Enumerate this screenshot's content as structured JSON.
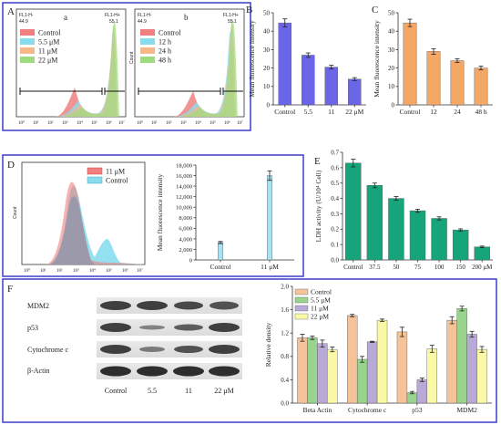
{
  "panels": {
    "A": {
      "letter": "A",
      "sub_a": "a",
      "sub_b": "b",
      "gate_left_label": "FL1-H-",
      "gate_left_value": "44.9",
      "gate_right_label": "FL1-H+",
      "gate_right_value": "55.1",
      "legend_a": [
        "Control",
        "5.5 μM",
        "11 μM",
        "22 μM"
      ],
      "legend_b": [
        "Control",
        "12 h",
        "24 h",
        "48 h"
      ],
      "ylabel_b": "Count",
      "xticks": [
        "10⁰",
        "10¹",
        "10²",
        "10³",
        "10⁴",
        "10⁵",
        "10⁶",
        "10⁷"
      ]
    },
    "D": {
      "letter": "D",
      "legend": [
        "11 μM",
        "Control"
      ],
      "ylabel_hist": "Count",
      "xticks": [
        "10⁰",
        "10¹",
        "10²",
        "10³",
        "10⁴",
        "10⁵",
        "10⁶",
        "10⁷"
      ]
    },
    "F": {
      "letter": "F",
      "blot_rows": [
        "MDM2",
        "p53",
        "Cytochrome c",
        "β-Actin"
      ],
      "lanes": [
        "Control",
        "5.5",
        "11",
        "22 μM"
      ]
    }
  },
  "colors": {
    "B_bar": "#6b66e8",
    "C_bar": "#f5a766",
    "D_bar": "#a8e2f5",
    "E_bar": "#16a57a",
    "F_series": [
      "#f5c39a",
      "#98d48e",
      "#b9a9d6",
      "#fafaa6"
    ],
    "frame": "#3d3dc9",
    "hist_control": "#f08080",
    "hist_55": "#87ddee",
    "hist_11": "#f5b88a",
    "hist_22": "#9fdb7e"
  },
  "chart_data": [
    {
      "id": "B",
      "type": "bar",
      "letter": "B",
      "categories": [
        "Control",
        "5.5",
        "11",
        "22 μM"
      ],
      "values": [
        44.5,
        27,
        20.5,
        14
      ],
      "errors": [
        2.2,
        1.2,
        1.0,
        0.8
      ],
      "ylabel": "Mean fluorescence intensity",
      "ylim": [
        0,
        50
      ],
      "yticks": [
        0,
        10,
        20,
        30,
        40,
        50
      ]
    },
    {
      "id": "C",
      "type": "bar",
      "letter": "C",
      "categories": [
        "Control",
        "12",
        "24",
        "48 h"
      ],
      "values": [
        44.5,
        29,
        24,
        20
      ],
      "errors": [
        2.0,
        1.5,
        1.0,
        1.0
      ],
      "ylabel": "Mean fluorescence intensity",
      "ylim": [
        0,
        50
      ],
      "yticks": [
        0,
        10,
        20,
        30,
        40,
        50
      ]
    },
    {
      "id": "D",
      "type": "bar",
      "categories": [
        "Control",
        "11 μM"
      ],
      "values": [
        3300,
        16000
      ],
      "errors": [
        200,
        900
      ],
      "ylabel": "Mean fluorescence intensity",
      "ylim": [
        0,
        18000
      ],
      "yticks": [
        0,
        2000,
        4000,
        6000,
        8000,
        10000,
        12000,
        14000,
        16000,
        18000
      ],
      "yticklabels": [
        "0",
        "2,000",
        "4,000",
        "6,000",
        "8,000",
        "10,000",
        "12,000",
        "14,000",
        "16,000",
        "18,000"
      ]
    },
    {
      "id": "E",
      "type": "bar",
      "letter": "E",
      "categories": [
        "Control",
        "37.5",
        "50",
        "75",
        "100",
        "150",
        "200 μM"
      ],
      "values": [
        0.63,
        0.485,
        0.4,
        0.32,
        0.27,
        0.195,
        0.085
      ],
      "errors": [
        0.025,
        0.015,
        0.012,
        0.01,
        0.01,
        0.007,
        0.005
      ],
      "ylabel": "LDH activity (U/10⁴ Cell)",
      "ylim": [
        0,
        0.7
      ],
      "yticks": [
        0,
        0.1,
        0.2,
        0.3,
        0.4,
        0.5,
        0.6,
        0.7
      ],
      "yticklabels": [
        "0.0",
        "0.1",
        "0.2",
        "0.3",
        "0.4",
        "0.5",
        "0.6",
        "0.7"
      ]
    },
    {
      "id": "F",
      "type": "bar",
      "categories": [
        "Beta Actin",
        "Cytochrome c",
        "p53",
        "MDM2"
      ],
      "series": [
        {
          "name": "Control",
          "values": [
            1.12,
            1.5,
            1.22,
            1.42
          ],
          "errors": [
            0.06,
            0.02,
            0.08,
            0.06
          ]
        },
        {
          "name": "5.5 μM",
          "values": [
            1.12,
            0.75,
            0.18,
            1.62
          ],
          "errors": [
            0.03,
            0.05,
            0.02,
            0.04
          ]
        },
        {
          "name": "11 μM",
          "values": [
            1.02,
            1.05,
            0.4,
            1.18
          ],
          "errors": [
            0.06,
            0.01,
            0.03,
            0.05
          ]
        },
        {
          "name": "22 μM",
          "values": [
            0.92,
            1.42,
            0.93,
            0.92
          ],
          "errors": [
            0.04,
            0.02,
            0.06,
            0.05
          ]
        }
      ],
      "ylabel": "Relative density",
      "ylim": [
        0,
        2.0
      ],
      "yticks": [
        0,
        0.4,
        0.8,
        1.2,
        1.6,
        2.0
      ],
      "yticklabels": [
        "0.0",
        "0.4",
        "0.8",
        "1.2",
        "1.6",
        "2.0"
      ],
      "legend_position": "top-left"
    }
  ]
}
